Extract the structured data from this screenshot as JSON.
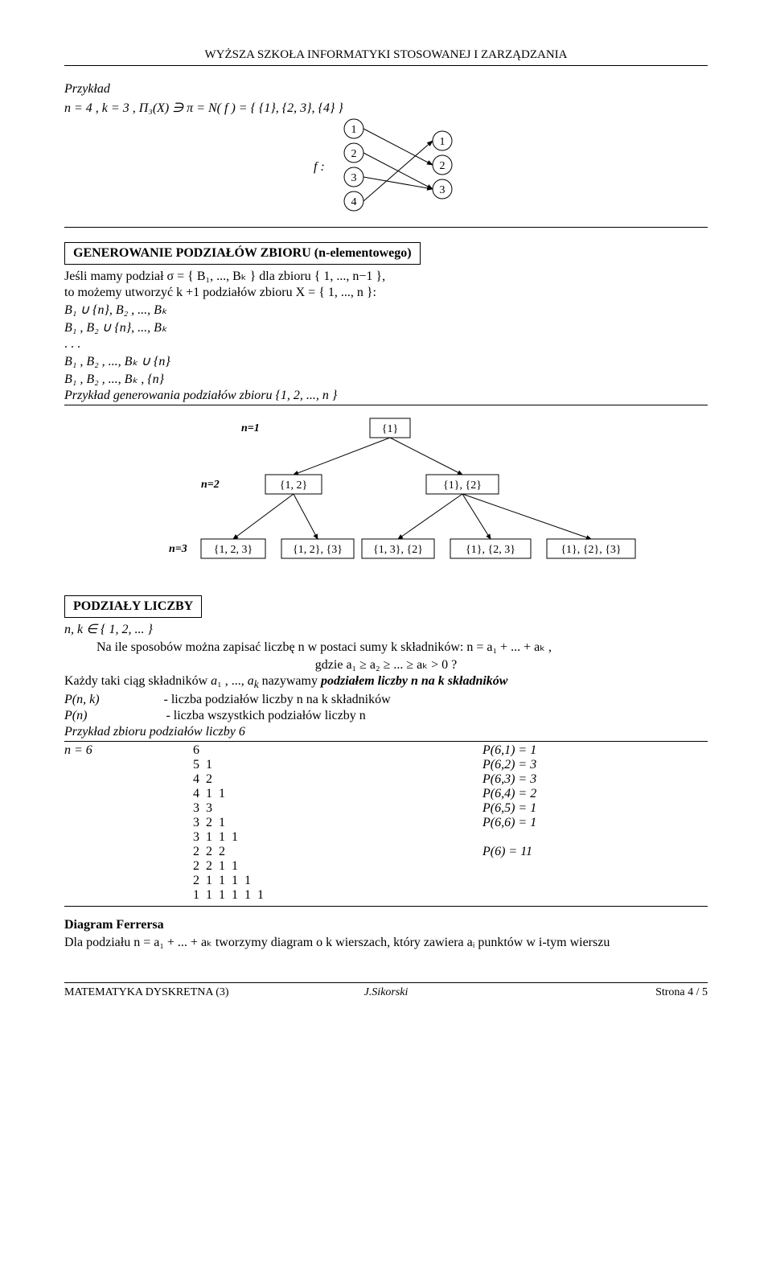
{
  "header": "WYŻSZA SZKOŁA INFORMATYKI STOSOWANEJ I ZARZĄDZANIA",
  "ex1": {
    "title": "Przykład",
    "line": "n = 4 ,   k = 3 ,          Π₃(X) ∋ π = N( f ) = { {1}, {2, 3}, {4} }",
    "flabel": "f :",
    "map": {
      "left": [
        "1",
        "2",
        "3",
        "4"
      ],
      "right": [
        "1",
        "2",
        "3"
      ],
      "edges": [
        [
          0,
          1
        ],
        [
          1,
          2
        ],
        [
          2,
          2
        ],
        [
          3,
          0
        ]
      ]
    }
  },
  "gen": {
    "box": "GENEROWANIE PODZIAŁÓW ZBIORU (n-elementowego)",
    "l1": "Jeśli mamy podział  σ = { B₁, ..., Bₖ } dla zbioru  { 1, ..., n−1 },",
    "l2": "to możemy utworzyć  k +1  podziałów zbioru  X = { 1, ..., n }:",
    "r1": "B₁ ∪ {n}, B₂ ,        ...,        Bₖ",
    "r2": "B₁ ,        B₂ ∪ {n}, ...,        Bₖ",
    "r3": ". . .",
    "r4": "B₁ ,        B₂ ,        ...,        Bₖ ∪ {n}",
    "r5": "B₁ ,        B₂ ,        ...,        Bₖ ,        {n}",
    "ex": "Przykład generowania podziałów zbioru  {1, 2, ..., n }",
    "tree": {
      "n1_label": "n=1",
      "n1_node": "{1}",
      "n2_label": "n=2",
      "n2_nodes": [
        "{1, 2}",
        "{1}, {2}"
      ],
      "n3_label": "n=3",
      "n3_nodes": [
        "{1, 2, 3}",
        "{1, 2}, {3}",
        "{1, 3}, {2}",
        "{1}, {2, 3}",
        "{1}, {2}, {3}"
      ]
    }
  },
  "podz": {
    "box": "PODZIAŁY LICZBY",
    "l1": "n, k ∈ { 1, 2, ... }",
    "l2": "Na ile sposobów można zapisać liczbę n  w postaci sumy k składników:   n = a₁ + ... + aₖ ,",
    "l3": "gdzie   a₁ ≥ a₂ ≥ ...  ≥ aₖ > 0 ?",
    "l4": "Każdy taki ciąg składników  a₁ , ..., aₖ   nazywamy podziałem liczby n na k składników",
    "l5a": "P(n, k)",
    "l5b": "- liczba podziałów liczby  n  na  k  składników",
    "l6a": "P(n)",
    "l6b": "- liczba wszystkich podziałów liczby  n",
    "ex": "Przykład zbioru podziałów liczby 6",
    "n6": "n = 6",
    "parts": [
      "6",
      "5  1",
      "4  2",
      "4  1  1",
      "3  3",
      "3  2  1",
      "3  1  1  1",
      "2  2  2",
      "2  2  1  1",
      "2  1  1  1  1",
      "1  1  1  1  1  1"
    ],
    "pvals": [
      "P(6,1) = 1",
      "P(6,2) = 3",
      "P(6,3) = 3",
      "P(6,4) = 2",
      "P(6,5) = 1",
      "P(6,6) = 1",
      "",
      "P(6) = 11",
      "",
      "",
      ""
    ]
  },
  "ferr": {
    "title": "Diagram Ferrersa",
    "line": "Dla podziału   n = a₁ + ... + aₖ  tworzymy diagram o  k  wierszach, który zawiera  aᵢ  punktów w  i-tym wierszu"
  },
  "footer": {
    "left": "MATEMATYKA  DYSKRETNA (3)",
    "mid": "J.Sikorski",
    "right": "Strona 4 / 5"
  }
}
